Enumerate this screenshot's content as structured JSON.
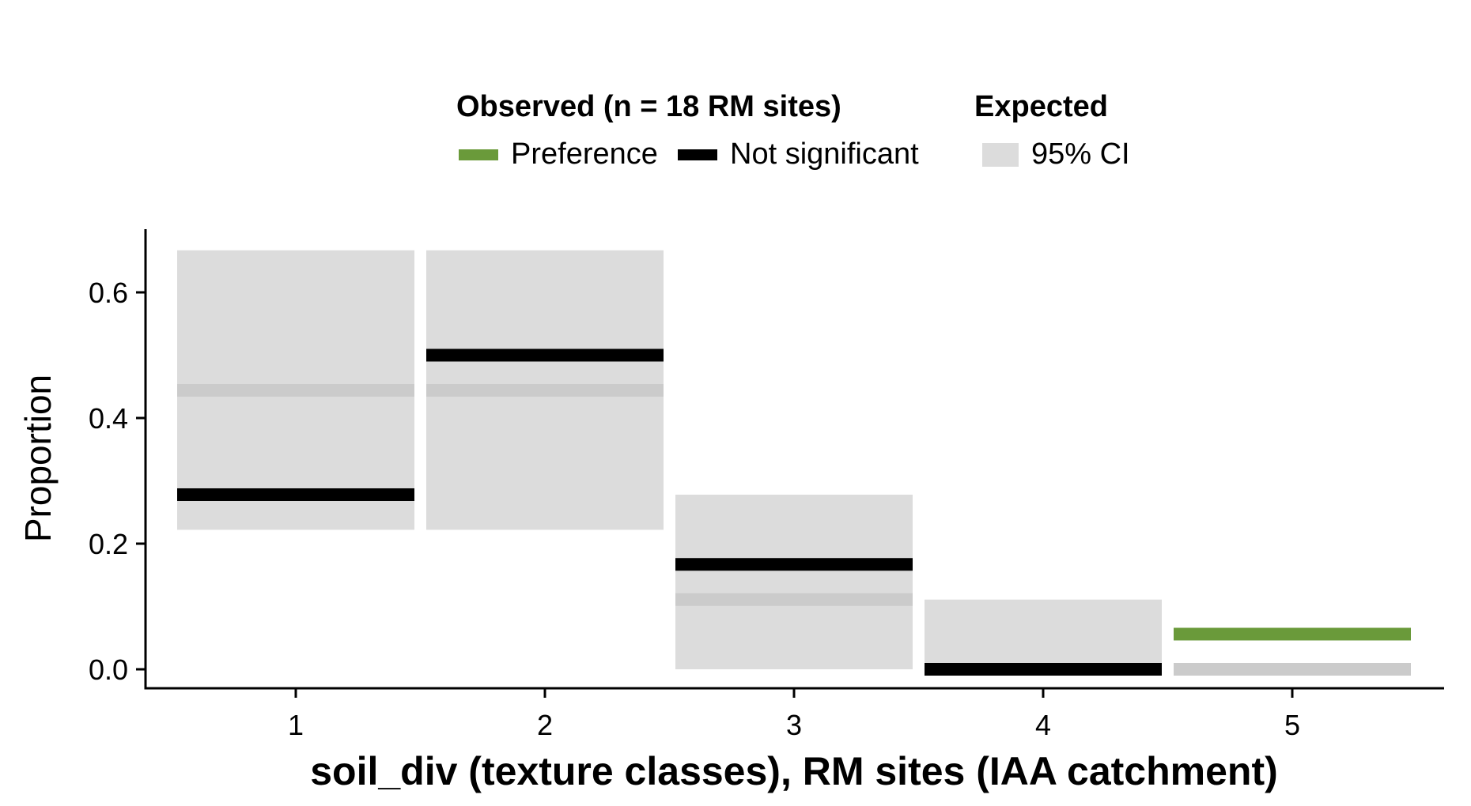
{
  "legend": {
    "observed_title": "Observed (n = 18 RM sites)",
    "expected_title": "Expected",
    "items": [
      {
        "label": "Preference",
        "color": "#6a9a3a"
      },
      {
        "label": "Not significant",
        "color": "#000000"
      },
      {
        "label": "95% CI",
        "color": "#dcdcdc"
      }
    ]
  },
  "chart_data": {
    "type": "bar",
    "xlabel": "soil_div (texture classes), RM sites (IAA catchment)",
    "ylabel": "Proportion",
    "ylim": [
      -0.02,
      0.7
    ],
    "yticks": [
      "0.0",
      "0.2",
      "0.4",
      "0.6"
    ],
    "categories": [
      "1",
      "2",
      "3",
      "4",
      "5"
    ],
    "series": [
      {
        "name": "Expected 95% CI",
        "lower": [
          0.222,
          0.222,
          0.0,
          -0.01,
          -0.01
        ],
        "upper": [
          0.667,
          0.667,
          0.278,
          0.111,
          0.01
        ]
      },
      {
        "name": "Expected",
        "values": [
          0.444,
          0.444,
          0.111,
          0.0,
          0.0
        ]
      },
      {
        "name": "Observed",
        "values": [
          0.278,
          0.5,
          0.167,
          0.0,
          0.056
        ],
        "status": [
          "Not significant",
          "Not significant",
          "Not significant",
          "Not significant",
          "Preference"
        ]
      }
    ],
    "colors": {
      "preference": "#6a9a3a",
      "not_significant": "#000000",
      "ci": "#dcdcdc",
      "expected": "#cbcbcb"
    },
    "grid": false
  }
}
